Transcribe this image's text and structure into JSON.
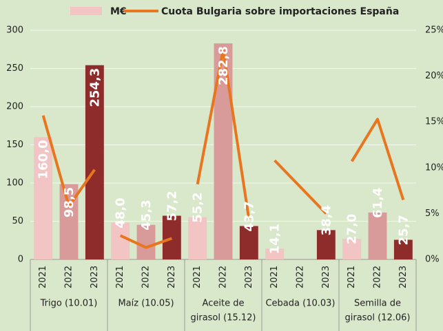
{
  "chart_data": {
    "type": "bar_line",
    "groups": [
      {
        "label": [
          "Trigo (10.01)"
        ]
      },
      {
        "label": [
          "Maíz (10.05)"
        ]
      },
      {
        "label": [
          "Aceite de",
          "girasol (15.12)"
        ]
      },
      {
        "label": [
          "Cebada (10.03)"
        ]
      },
      {
        "label": [
          "Semilla de",
          "girasol (12.06)"
        ]
      }
    ],
    "categories": [
      "2021",
      "2022",
      "2023",
      "2021",
      "2022",
      "2023",
      "2021",
      "2022",
      "2023",
      "2021",
      "2022",
      "2023",
      "2021",
      "2022",
      "2023"
    ],
    "series": [
      {
        "name": "M€",
        "type": "bar",
        "color": "#f2c4c4",
        "colors": [
          "#f2c4c4",
          "#d99a9a",
          "#8e2b2b",
          "#f2c4c4",
          "#d99a9a",
          "#8e2b2b",
          "#f2c4c4",
          "#d99a9a",
          "#8e2b2b",
          "#f2c4c4",
          "#d99a9a",
          "#8e2b2b",
          "#f2c4c4",
          "#d99a9a",
          "#8e2b2b"
        ],
        "values": [
          160.0,
          98.5,
          254.3,
          48.0,
          45.3,
          57.2,
          55.2,
          282.8,
          43.7,
          14.1,
          null,
          38.4,
          27.0,
          61.4,
          25.7
        ],
        "value_labels": [
          "160,0",
          "98,5",
          "254,3",
          "48,0",
          "45,3",
          "57,2",
          "55,2",
          "282,8",
          "43,7",
          "14,1",
          null,
          "38,4",
          "27,0",
          "61,4",
          "25,7"
        ]
      },
      {
        "name": "Cuota Bulgaria sobre importaciones España",
        "type": "line",
        "axis": "y2",
        "color": "#e8761f",
        "values": [
          15.7,
          5.8,
          9.8,
          2.6,
          1.3,
          2.3,
          8.2,
          22.9,
          4.4,
          10.8,
          7.9,
          5.0,
          10.7,
          15.3,
          6.5
        ]
      }
    ],
    "ylim": [
      0,
      300
    ],
    "yticks": [
      0,
      50,
      100,
      150,
      200,
      250,
      300
    ],
    "y2lim": [
      0,
      25
    ],
    "y2ticks": [
      {
        "value": 0,
        "label": "0%"
      },
      {
        "value": 5,
        "label": "5%"
      },
      {
        "value": 10,
        "label": "10%"
      },
      {
        "value": 15,
        "label": "15%"
      },
      {
        "value": 20,
        "label": "20%"
      },
      {
        "value": 25,
        "label": "25%"
      }
    ],
    "grid": true,
    "legend": "top"
  }
}
